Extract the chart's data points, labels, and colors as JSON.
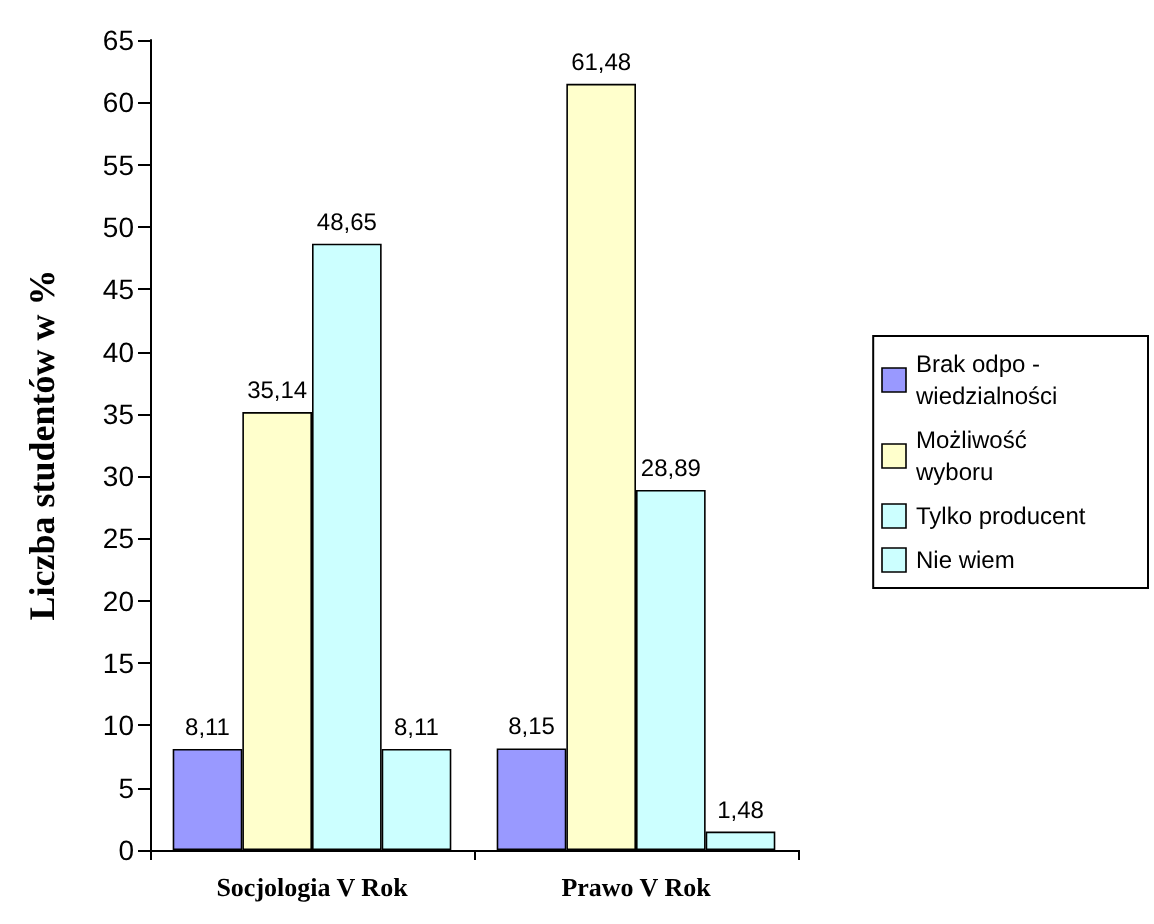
{
  "chart_data": {
    "type": "bar",
    "ylabel": "Liczba studentów w %",
    "categories": [
      "Socjologia V Rok",
      "Prawo V Rok"
    ],
    "series": [
      {
        "name": "Brak odpo - wiedzialności",
        "color": "#9999ff",
        "values": [
          8.11,
          8.15
        ],
        "value_labels": [
          "8,11",
          "8,15"
        ]
      },
      {
        "name": "Możliwość wyboru",
        "color": "#ffffcc",
        "values": [
          35.14,
          61.48
        ],
        "value_labels": [
          "35,14",
          "61,48"
        ]
      },
      {
        "name": "Tylko producent",
        "color": "#ccffff",
        "values": [
          48.65,
          28.89
        ],
        "value_labels": [
          "48,65",
          "28,89"
        ]
      },
      {
        "name": "Nie wiem",
        "color": "#ccffff",
        "values": [
          8.11,
          1.48
        ],
        "value_labels": [
          "8,11",
          "1,48"
        ]
      }
    ],
    "ylim": [
      0,
      65
    ],
    "yticks": [
      0,
      5,
      10,
      15,
      20,
      25,
      30,
      35,
      40,
      45,
      50,
      55,
      60,
      65
    ],
    "grid": false,
    "legend": "right"
  }
}
